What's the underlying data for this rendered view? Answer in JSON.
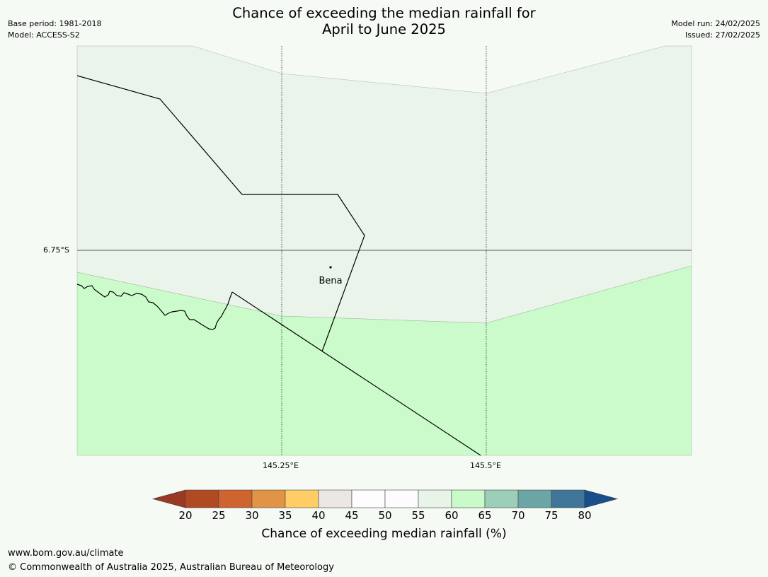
{
  "header": {
    "title_line1": "Chance of exceeding the median rainfall for",
    "title_line2": "April to June 2025",
    "base_period": "Base period: 1981-2018",
    "model": "Model: ACCESS-S2",
    "model_run": "Model run: 24/02/2025",
    "issued": "Issued: 27/02/2025"
  },
  "map": {
    "place_label": "Bena",
    "lat_label": "6.75°S",
    "lon_labels": [
      "145.25°E",
      "145.5°E"
    ],
    "colors": {
      "band_55_60": "#eaf4ea",
      "band_60_65": "#cbfbca",
      "border": "#000000",
      "gridline": "#000000"
    }
  },
  "colorbar": {
    "title": "Chance of exceeding median rainfall (%)",
    "ticks": [
      "20",
      "25",
      "30",
      "35",
      "40",
      "45",
      "50",
      "55",
      "60",
      "65",
      "70",
      "75",
      "80"
    ],
    "colors": [
      "#9a3a24",
      "#b04a22",
      "#d06430",
      "#e29446",
      "#fecd66",
      "#ebe8e4",
      "#fdfdfd",
      "#fbfcfb",
      "#e9f4e9",
      "#caf9ca",
      "#9ccfb8",
      "#6ca5a5",
      "#3f7599",
      "#184f8c"
    ]
  },
  "footer": {
    "url": "www.bom.gov.au/climate",
    "copyright": "© Commonwealth of Australia 2025, Australian Bureau of Meteorology"
  }
}
